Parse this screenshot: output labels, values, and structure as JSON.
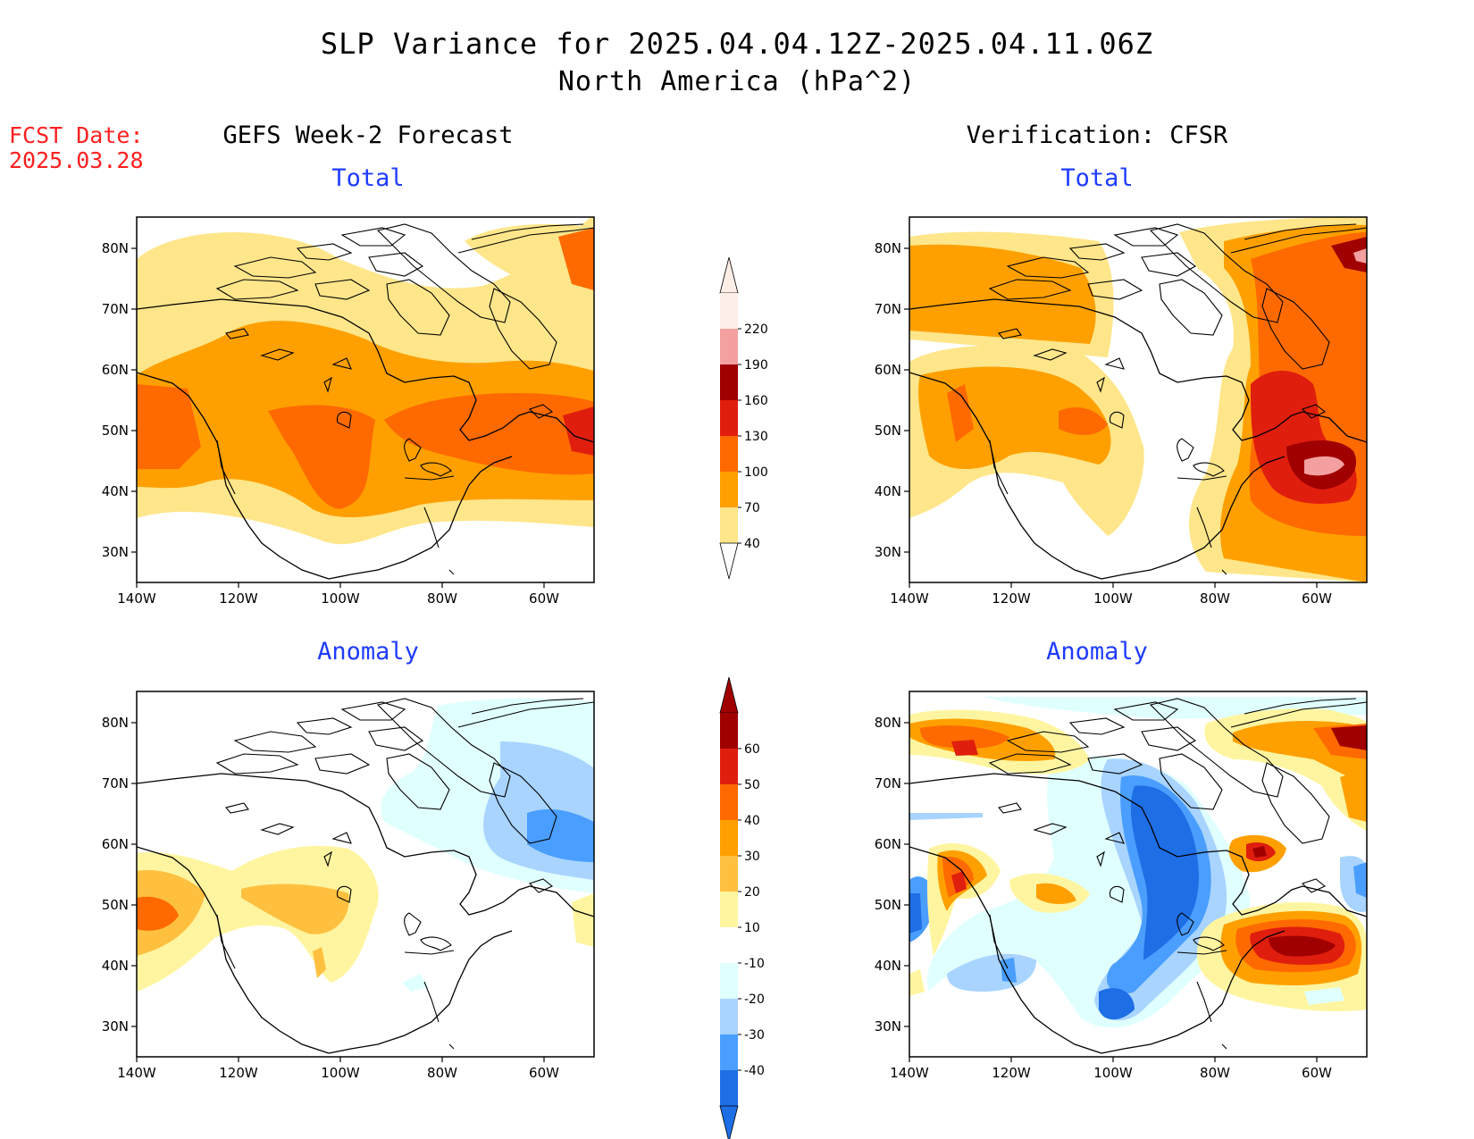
{
  "title": "SLP Variance for 2025.04.04.12Z-2025.04.11.06Z",
  "subtitle": "North America (hPa^2)",
  "fcst_label": "FCST Date:",
  "fcst_date": "2025.03.28",
  "left_column_title": "GEFS Week-2 Forecast",
  "right_column_title": "Verification: CFSR",
  "panels": {
    "top_left": "Total",
    "top_right": "Total",
    "bottom_left": "Anomaly",
    "bottom_right": "Anomaly"
  },
  "axes": {
    "lat_labels": [
      "80N",
      "70N",
      "60N",
      "50N",
      "40N",
      "30N"
    ],
    "lon_labels": [
      "140W",
      "120W",
      "100W",
      "80W",
      "60W"
    ]
  },
  "colorbar_total": {
    "levels": [
      "220",
      "190",
      "160",
      "130",
      "100",
      "70",
      "40"
    ],
    "colors": [
      "#fdeee8",
      "#f4a0a0",
      "#a00000",
      "#e01e0e",
      "#ff6a00",
      "#ffa000",
      "#ffe68a"
    ]
  },
  "colorbar_anomaly": {
    "levels": [
      "60",
      "50",
      "40",
      "30",
      "20",
      "10",
      "-10",
      "-20",
      "-30",
      "-40"
    ],
    "colors": [
      "#a00000",
      "#e01e0e",
      "#ff6a00",
      "#ffa000",
      "#ffc040",
      "#fff5a0",
      "#ffffff",
      "#e0ffff",
      "#a8d4ff",
      "#4a9eff",
      "#1e6ee6"
    ]
  }
}
